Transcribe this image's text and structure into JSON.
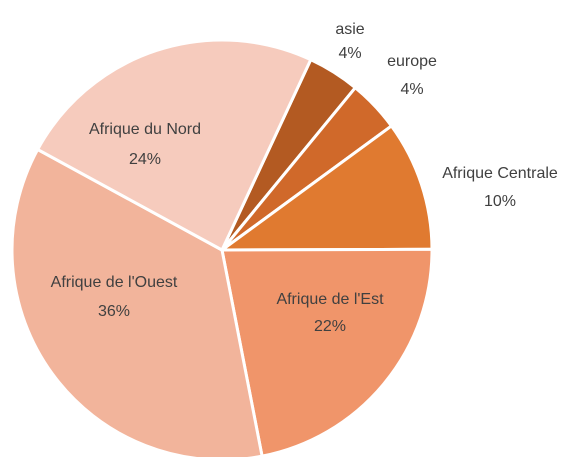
{
  "chart_data": {
    "type": "pie",
    "categories": [
      "asie",
      "europe",
      "Afrique Centrale",
      "Afrique de l'Est",
      "Afrique de l'Ouest",
      "Afrique du Nord"
    ],
    "values": [
      4,
      4,
      10,
      22,
      36,
      24
    ],
    "value_labels": [
      "4%",
      "4%",
      "10%",
      "22%",
      "36%",
      "24%"
    ],
    "colors": [
      "#b35a22",
      "#d0692a",
      "#e07a30",
      "#f0956a",
      "#f2b49b",
      "#f6cbbd"
    ]
  }
}
